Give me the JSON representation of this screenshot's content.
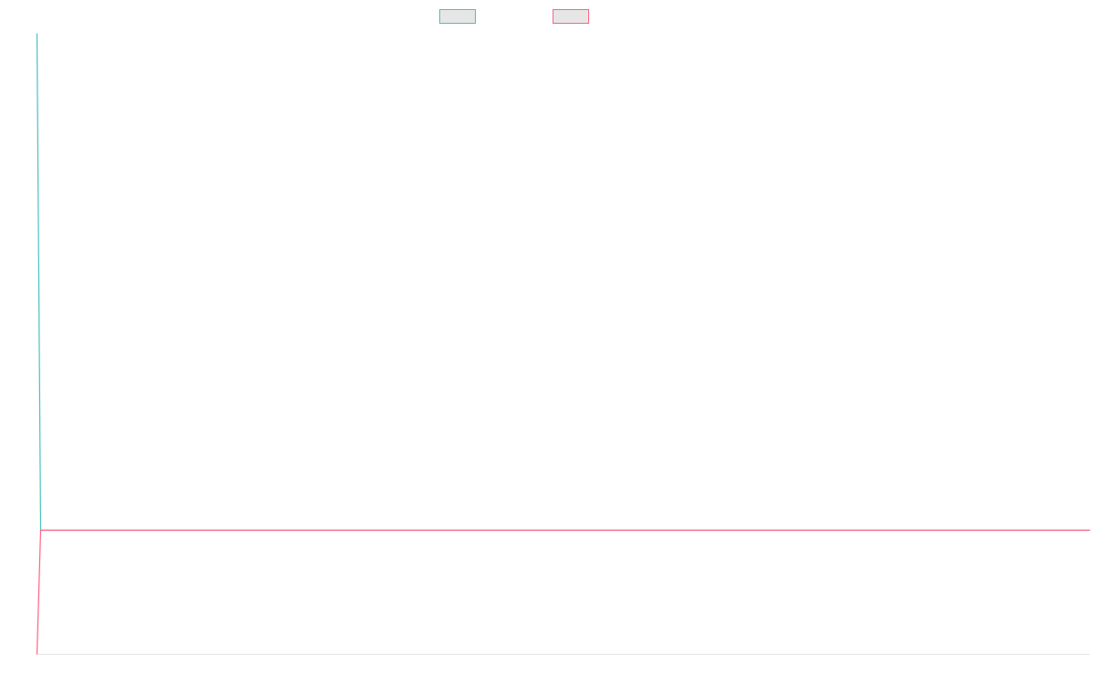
{
  "chart_data": {
    "type": "line",
    "title": "",
    "xlabel": "",
    "ylabel": "",
    "legend_position": "top-center",
    "grid": false,
    "x": [
      0,
      1,
      2
    ],
    "xlim": [
      0,
      1000
    ],
    "ylim": [
      0,
      1000
    ],
    "series": [
      {
        "color": "#4bc0c0",
        "fill": "#e6e6e6",
        "values": [
          1000,
          200,
          200
        ]
      },
      {
        "color": "#ff6384",
        "fill": "#e6e6e6",
        "values": [
          0,
          200,
          200
        ]
      }
    ]
  }
}
